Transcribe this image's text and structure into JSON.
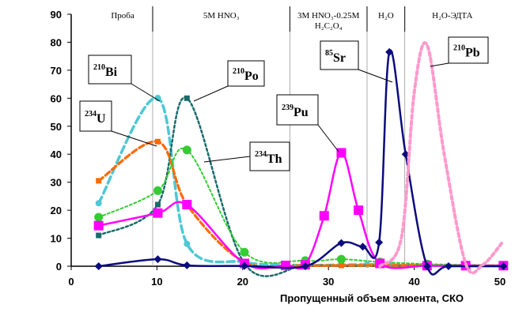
{
  "chart_data": {
    "type": "line",
    "xlabel": "Пропущенный объем элюента, СКО",
    "ylabel": "",
    "xlim": [
      0,
      50
    ],
    "ylim": [
      0,
      90
    ],
    "x_ticks": [
      "0",
      "10",
      "20",
      "30",
      "40",
      "50"
    ],
    "y_ticks": [
      "0",
      "10",
      "20",
      "30",
      "40",
      "50",
      "60",
      "70",
      "80",
      "90"
    ],
    "grid": false,
    "stages": [
      {
        "label": "Проба",
        "x_from": 0,
        "x_to": 9.5
      },
      {
        "label": "5M HNO₃",
        "x_from": 9.5,
        "x_to": 25.5
      },
      {
        "label": "3M HNO₃-0.25M",
        "label2": "H₂C₂O₄",
        "x_from": 25.5,
        "x_to": 34.5
      },
      {
        "label": "H₂O",
        "x_from": 34.5,
        "x_to": 38.9
      },
      {
        "label": "H₂O-ЭДТА",
        "x_from": 38.9,
        "x_to": 50.5
      }
    ],
    "series": [
      {
        "name": "210Bi",
        "sup": "210",
        "el": "Bi",
        "color": "#4dc8d4",
        "dash": "9,5",
        "width": 3.5,
        "marker": "circle",
        "x": [
          3.2,
          10.1,
          13.5,
          20.2,
          25,
          27.3,
          31.5,
          34.5,
          36,
          37.2,
          41.5,
          46,
          50.4
        ],
        "y": [
          22.5,
          60.1,
          8,
          1.5,
          0.6,
          0.3,
          0.5,
          0.6,
          0.7,
          0.5,
          0.2,
          0.2,
          0.1
        ]
      },
      {
        "name": "210Po",
        "sup": "210",
        "el": "Po",
        "color": "#1a6b6b",
        "dash": "3,3",
        "width": 2.5,
        "marker": "square-sm",
        "x": [
          3.2,
          10.1,
          13.5,
          20.2,
          27.3,
          31.5,
          36,
          41.5,
          50.4
        ],
        "y": [
          11,
          22,
          60,
          1,
          0.4,
          0.3,
          0.3,
          0.3,
          0.2
        ]
      },
      {
        "name": "234U",
        "sup": "234",
        "el": "U",
        "color": "#ff6a00",
        "dash": "7,4",
        "width": 3.2,
        "marker": "square-sm",
        "x": [
          3.2,
          10.1,
          13.5,
          20.2,
          27.3,
          31.5,
          36,
          41.5,
          50.4
        ],
        "y": [
          30.5,
          44.5,
          22,
          1.5,
          0.3,
          0.3,
          0.3,
          0.3,
          0.2
        ]
      },
      {
        "name": "234Th",
        "sup": "234",
        "el": "Th",
        "color": "#33cc33",
        "dash": "3,3",
        "width": 2,
        "marker": "circle-lg",
        "x": [
          3.2,
          10.1,
          13.5,
          20.2,
          27.3,
          31.5,
          36,
          41.5,
          46,
          50.4
        ],
        "y": [
          17.5,
          27,
          41.5,
          5,
          2,
          2.5,
          1.5,
          0.8,
          0.5,
          0.3
        ]
      },
      {
        "name": "239Pu",
        "sup": "239",
        "el": "Pu",
        "color": "#ff00ff",
        "dash": "",
        "width": 2.5,
        "marker": "square",
        "x": [
          3.2,
          10.1,
          13.5,
          20.2,
          25,
          27.3,
          29.5,
          31.5,
          33.5,
          36,
          41.5,
          46,
          50.4
        ],
        "y": [
          14.5,
          19,
          22,
          1,
          0.3,
          0.5,
          18,
          40.5,
          20,
          1,
          0.2,
          0.2,
          0.2
        ]
      },
      {
        "name": "85Sr",
        "sup": "85",
        "el": "Sr",
        "color": "#0b0b7e",
        "dash": "",
        "width": 2.5,
        "marker": "diamond",
        "x": [
          3.2,
          10.1,
          13.5,
          20.2,
          27.3,
          31.5,
          34,
          35.9,
          37.1,
          39,
          41.5,
          44,
          50.4
        ],
        "y": [
          0,
          2.5,
          0.3,
          0.1,
          0,
          8.3,
          7,
          8.5,
          76.5,
          40,
          0,
          0,
          0
        ]
      },
      {
        "name": "210Pb",
        "sup": "210",
        "el": "Pb",
        "color": "#ff99cc",
        "dash": "4,4",
        "width": 4,
        "marker": "none",
        "x": [
          36,
          38.5,
          40,
          41.5,
          43.5,
          46,
          48,
          50.4
        ],
        "y": [
          0,
          10,
          62,
          79,
          40,
          1,
          0.5,
          9
        ]
      }
    ]
  }
}
